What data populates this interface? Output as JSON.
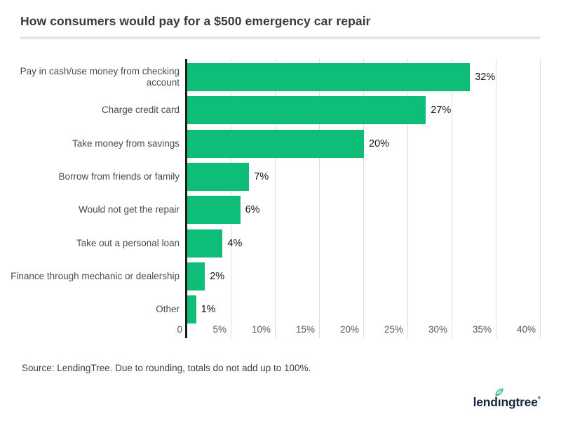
{
  "header": {
    "title": "How consumers would pay for a $500 emergency car repair"
  },
  "chart_data": {
    "type": "bar",
    "orientation": "horizontal",
    "title": "How consumers would pay for a $500 emergency car repair",
    "categories": [
      "Pay in cash/use money from checking account",
      "Charge credit card",
      "Take money from savings",
      "Borrow from friends or family",
      "Would not get the repair",
      "Take out a personal loan",
      "Finance through mechanic or dealership",
      "Other"
    ],
    "values": [
      32,
      27,
      20,
      7,
      6,
      4,
      2,
      1
    ],
    "value_labels": [
      "32%",
      "27%",
      "20%",
      "7%",
      "6%",
      "4%",
      "2%",
      "1%"
    ],
    "x_ticks": [
      "0",
      "5%",
      "10%",
      "15%",
      "20%",
      "25%",
      "30%",
      "35%",
      "40%"
    ],
    "x_tick_values": [
      0,
      5,
      10,
      15,
      20,
      25,
      30,
      35,
      40
    ],
    "xlim": [
      0,
      40
    ],
    "xlabel": "",
    "ylabel": "",
    "grid": true,
    "legend_position": "none",
    "bar_color": "#0dbd78",
    "axis_color": "#1c1c1c",
    "gridline_color": "#dcdcdc"
  },
  "footer": {
    "source_note": "Source: LendingTree. Due to rounding, totals do not add up to 100%.",
    "logo": {
      "text": "lendingtree",
      "pre": "lend",
      "dotless_i": "ı",
      "post": "ngtree",
      "mark": "®",
      "leaf_color": "#29b573",
      "text_color": "#16273f"
    }
  }
}
